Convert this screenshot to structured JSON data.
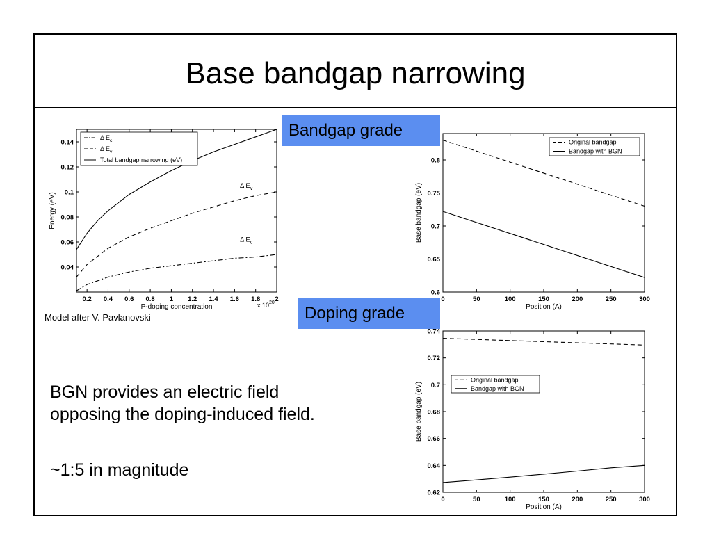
{
  "slide": {
    "title": "Base bandgap narrowing",
    "caption": "Model after V. Pavlanovski",
    "tag_bandgap": "Bandgap grade",
    "tag_doping": "Doping grade",
    "body_line1": "BGN provides an electric field",
    "body_line2": "opposing the doping-induced field.",
    "body_line3": "~1:5 in magnitude"
  },
  "chart_data": [
    {
      "type": "line",
      "xlabel": "P-doping concentration",
      "ylabel": "Energy (eV)",
      "x_multiplier_label": "x 10",
      "x_multiplier_exp": "20",
      "xlim": [
        0.1,
        2.0
      ],
      "ylim": [
        0.02,
        0.15
      ],
      "xticks": [
        0.2,
        0.4,
        0.6,
        0.8,
        1,
        1.2,
        1.4,
        1.6,
        1.8,
        2
      ],
      "yticks": [
        0.04,
        0.06,
        0.08,
        0.1,
        0.12,
        0.14
      ],
      "legend_placement": "top-left",
      "series": [
        {
          "name": "Δ E",
          "sub": "c",
          "style": "dashdot",
          "x": [
            0.1,
            0.2,
            0.4,
            0.6,
            0.8,
            1.0,
            1.2,
            1.4,
            1.6,
            1.8,
            2.0
          ],
          "y": [
            0.021,
            0.026,
            0.032,
            0.036,
            0.039,
            0.041,
            0.043,
            0.045,
            0.047,
            0.048,
            0.05
          ]
        },
        {
          "name": "Δ E",
          "sub": "v",
          "style": "dashed",
          "x": [
            0.1,
            0.2,
            0.4,
            0.6,
            0.8,
            1.0,
            1.2,
            1.4,
            1.6,
            1.8,
            2.0
          ],
          "y": [
            0.032,
            0.042,
            0.055,
            0.064,
            0.071,
            0.077,
            0.083,
            0.088,
            0.093,
            0.097,
            0.1
          ]
        },
        {
          "name": "Total bandgap narrowing (eV)",
          "style": "solid",
          "x": [
            0.1,
            0.2,
            0.3,
            0.4,
            0.6,
            0.8,
            1.0,
            1.2,
            1.4,
            1.6,
            1.8,
            2.0
          ],
          "y": [
            0.054,
            0.067,
            0.077,
            0.085,
            0.098,
            0.108,
            0.117,
            0.125,
            0.132,
            0.138,
            0.144,
            0.15
          ]
        }
      ],
      "annotations": [
        {
          "text": "Δ E",
          "sub": "v",
          "x": 1.65,
          "y": 0.101
        },
        {
          "text": "Δ E",
          "sub": "c",
          "x": 1.65,
          "y": 0.058
        }
      ]
    },
    {
      "type": "line",
      "xlabel": "Position (A)",
      "ylabel": "Base bandgap (eV)",
      "xlim": [
        0,
        300
      ],
      "ylim": [
        0.6,
        0.84
      ],
      "xticks": [
        0,
        50,
        100,
        150,
        200,
        250,
        300
      ],
      "yticks": [
        0.6,
        0.65,
        0.7,
        0.75,
        0.8
      ],
      "legend_placement": "top-right",
      "series": [
        {
          "name": "Original bandgap",
          "style": "dashed",
          "x": [
            0,
            300
          ],
          "y": [
            0.83,
            0.73
          ]
        },
        {
          "name": "Bandgap with BGN",
          "style": "solid",
          "x": [
            0,
            300
          ],
          "y": [
            0.722,
            0.622
          ]
        }
      ]
    },
    {
      "type": "line",
      "xlabel": "Position (A)",
      "ylabel": "Base bandgap (eV)",
      "xlim": [
        0,
        300
      ],
      "ylim": [
        0.62,
        0.74
      ],
      "xticks": [
        0,
        50,
        100,
        150,
        200,
        250,
        300
      ],
      "yticks": [
        0.62,
        0.64,
        0.66,
        0.68,
        0.7,
        0.72,
        0.74
      ],
      "legend_placement": "center-left",
      "series": [
        {
          "name": "Original bandgap",
          "style": "dashed",
          "x": [
            0,
            300
          ],
          "y": [
            0.7345,
            0.7295
          ]
        },
        {
          "name": "Bandgap with BGN",
          "style": "solid",
          "x": [
            0,
            50,
            100,
            150,
            200,
            250,
            300
          ],
          "y": [
            0.6273,
            0.6292,
            0.6313,
            0.6335,
            0.6358,
            0.6382,
            0.64
          ]
        }
      ]
    }
  ]
}
